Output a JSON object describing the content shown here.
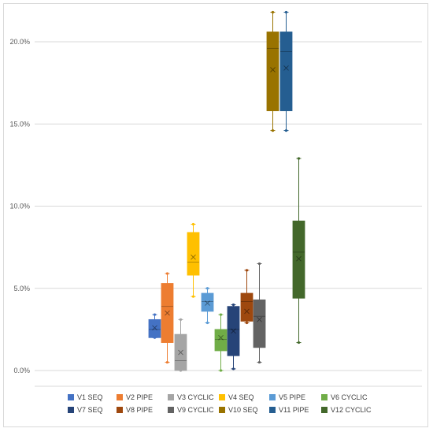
{
  "chart_data": {
    "type": "box",
    "title": "",
    "xlabel": "",
    "ylabel": "",
    "ylim": [
      0,
      0.2
    ],
    "yticks": [
      0.0,
      0.05,
      0.1,
      0.15,
      0.2
    ],
    "ytick_labels": [
      "0.0%",
      "5.0%",
      "10.0%",
      "15.0%",
      "20.0%"
    ],
    "grid": true,
    "legend_position": "bottom",
    "series": [
      {
        "name": "V1 SEQ",
        "color": "#4472c4",
        "min": 0.02,
        "q1": 0.02,
        "median": 0.025,
        "q3": 0.031,
        "max": 0.034,
        "mean": 0.026
      },
      {
        "name": "V2 PIPE",
        "color": "#ed7d31",
        "min": 0.005,
        "q1": 0.017,
        "median": 0.039,
        "q3": 0.053,
        "max": 0.059,
        "mean": 0.035
      },
      {
        "name": "V3 CYCLIC",
        "color": "#a5a5a5",
        "min": 0.0,
        "q1": 0.0,
        "median": 0.006,
        "q3": 0.022,
        "max": 0.031,
        "mean": 0.011
      },
      {
        "name": "V4 SEQ",
        "color": "#ffc000",
        "min": 0.045,
        "q1": 0.058,
        "median": 0.066,
        "q3": 0.084,
        "max": 0.089,
        "mean": 0.069
      },
      {
        "name": "V5 PIPE",
        "color": "#5b9bd5",
        "min": 0.029,
        "q1": 0.036,
        "median": 0.042,
        "q3": 0.047,
        "max": 0.05,
        "mean": 0.041
      },
      {
        "name": "V6 CYCLIC",
        "color": "#70ad47",
        "min": 0.0,
        "q1": 0.012,
        "median": 0.019,
        "q3": 0.025,
        "max": 0.034,
        "mean": 0.02
      },
      {
        "name": "V7 SEQ",
        "color": "#264478",
        "min": 0.001,
        "q1": 0.009,
        "median": 0.025,
        "q3": 0.039,
        "max": 0.04,
        "mean": 0.024
      },
      {
        "name": "V8 PIPE",
        "color": "#9e480e",
        "min": 0.029,
        "q1": 0.03,
        "median": 0.042,
        "q3": 0.047,
        "max": 0.061,
        "mean": 0.036
      },
      {
        "name": "V9 CYCLIC",
        "color": "#636363",
        "min": 0.005,
        "q1": 0.014,
        "median": 0.033,
        "q3": 0.043,
        "max": 0.065,
        "mean": 0.031
      },
      {
        "name": "V10 SEQ",
        "color": "#997300",
        "min": 0.146,
        "q1": 0.158,
        "median": 0.196,
        "q3": 0.206,
        "max": 0.218,
        "mean": 0.183
      },
      {
        "name": "V11 PIPE",
        "color": "#255e91",
        "min": 0.146,
        "q1": 0.158,
        "median": 0.194,
        "q3": 0.206,
        "max": 0.218,
        "mean": 0.184
      },
      {
        "name": "V12 CYCLIC",
        "color": "#43682b",
        "min": 0.017,
        "q1": 0.044,
        "median": 0.072,
        "q3": 0.091,
        "max": 0.129,
        "mean": 0.068
      }
    ]
  }
}
